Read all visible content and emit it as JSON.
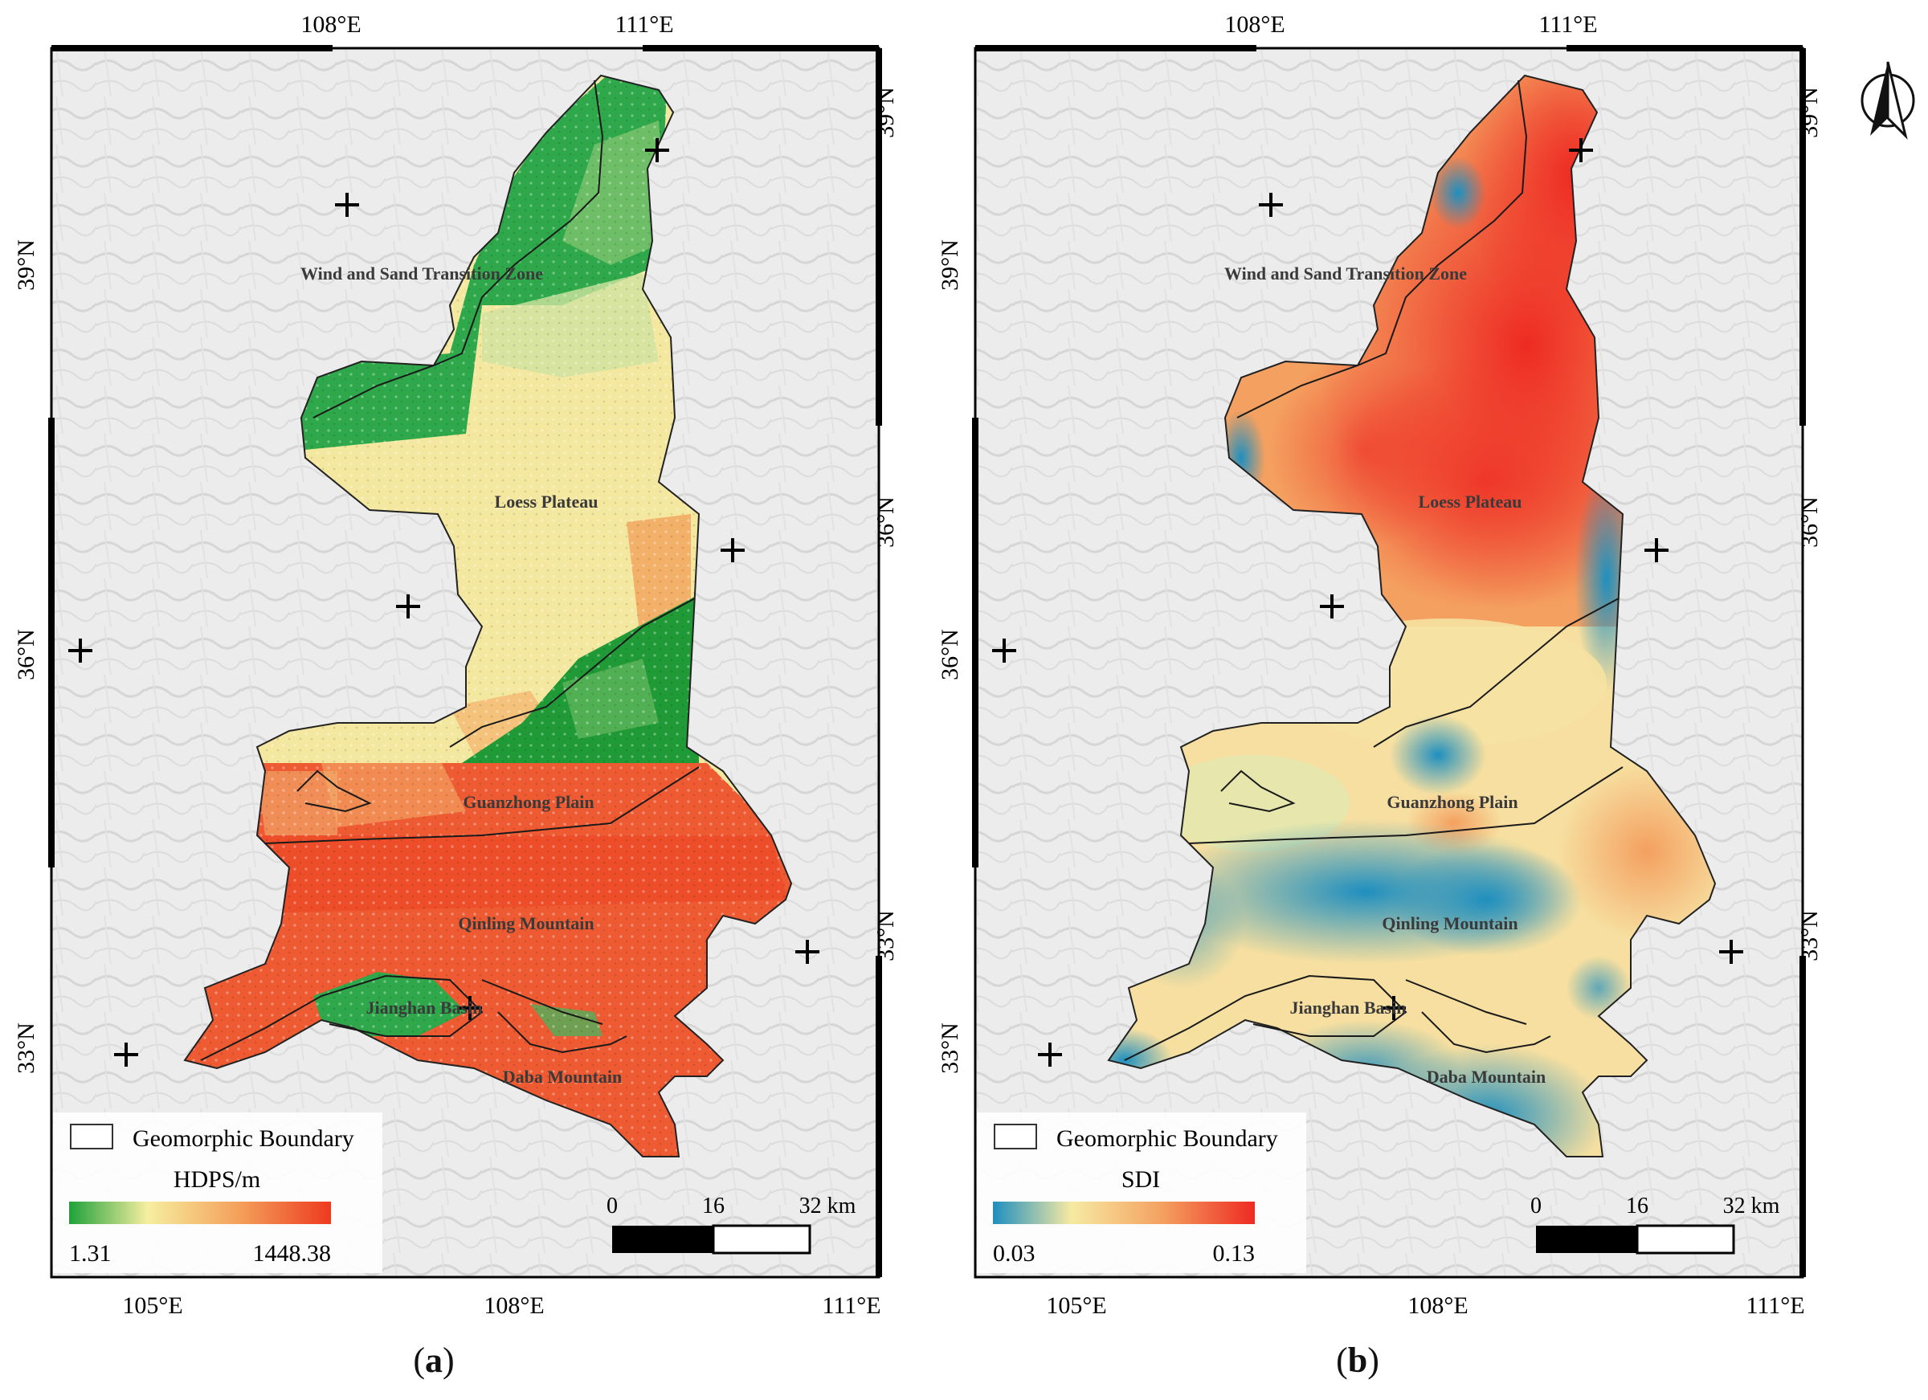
{
  "panels": [
    {
      "id": "a",
      "caption_letter": "a",
      "top_lon_labels": [
        "108°E",
        "111°E"
      ],
      "bottom_lon_labels": [
        "105°E",
        "108°E",
        "111°E"
      ],
      "left_lat_labels": [
        "39°N",
        "36°N",
        "33°N"
      ],
      "right_lat_labels": [
        "39°N",
        "36°N",
        "33°N"
      ],
      "region_labels": [
        "Wind and Sand Transition Zone",
        "Loess Plateau",
        "Guanzhong Plain",
        "Qinling Mountain",
        "Jianghan Basin",
        "Daba Mountain"
      ],
      "legend": {
        "boundary_label": "Geomorphic Boundary",
        "title": "HDPS/m",
        "min": "1.31",
        "max": "1448.38",
        "colors": [
          "#1fa23a",
          "#f6eea0",
          "#f4a05a",
          "#ee3a20"
        ]
      },
      "scalebar": {
        "labels": [
          "0",
          "16",
          "32 km"
        ]
      }
    },
    {
      "id": "b",
      "caption_letter": "b",
      "top_lon_labels": [
        "108°E",
        "111°E"
      ],
      "bottom_lon_labels": [
        "105°E",
        "108°E",
        "111°E"
      ],
      "left_lat_labels": [
        "39°N",
        "36°N",
        "33°N"
      ],
      "right_lat_labels": [
        "39°N",
        "36°N",
        "33°N"
      ],
      "region_labels": [
        "Wind and Sand Transition Zone",
        "Loess Plateau",
        "Guanzhong Plain",
        "Qinling Mountain",
        "Jianghan Basin",
        "Daba Mountain"
      ],
      "legend": {
        "boundary_label": "Geomorphic Boundary",
        "title": "SDI",
        "min": "0.03",
        "max": "0.13",
        "colors": [
          "#1f8fbf",
          "#f7eaa2",
          "#f4a060",
          "#ee2a22"
        ]
      },
      "scalebar": {
        "labels": [
          "0",
          "16",
          "32 km"
        ]
      }
    }
  ],
  "north_arrow": "north-arrow-icon"
}
